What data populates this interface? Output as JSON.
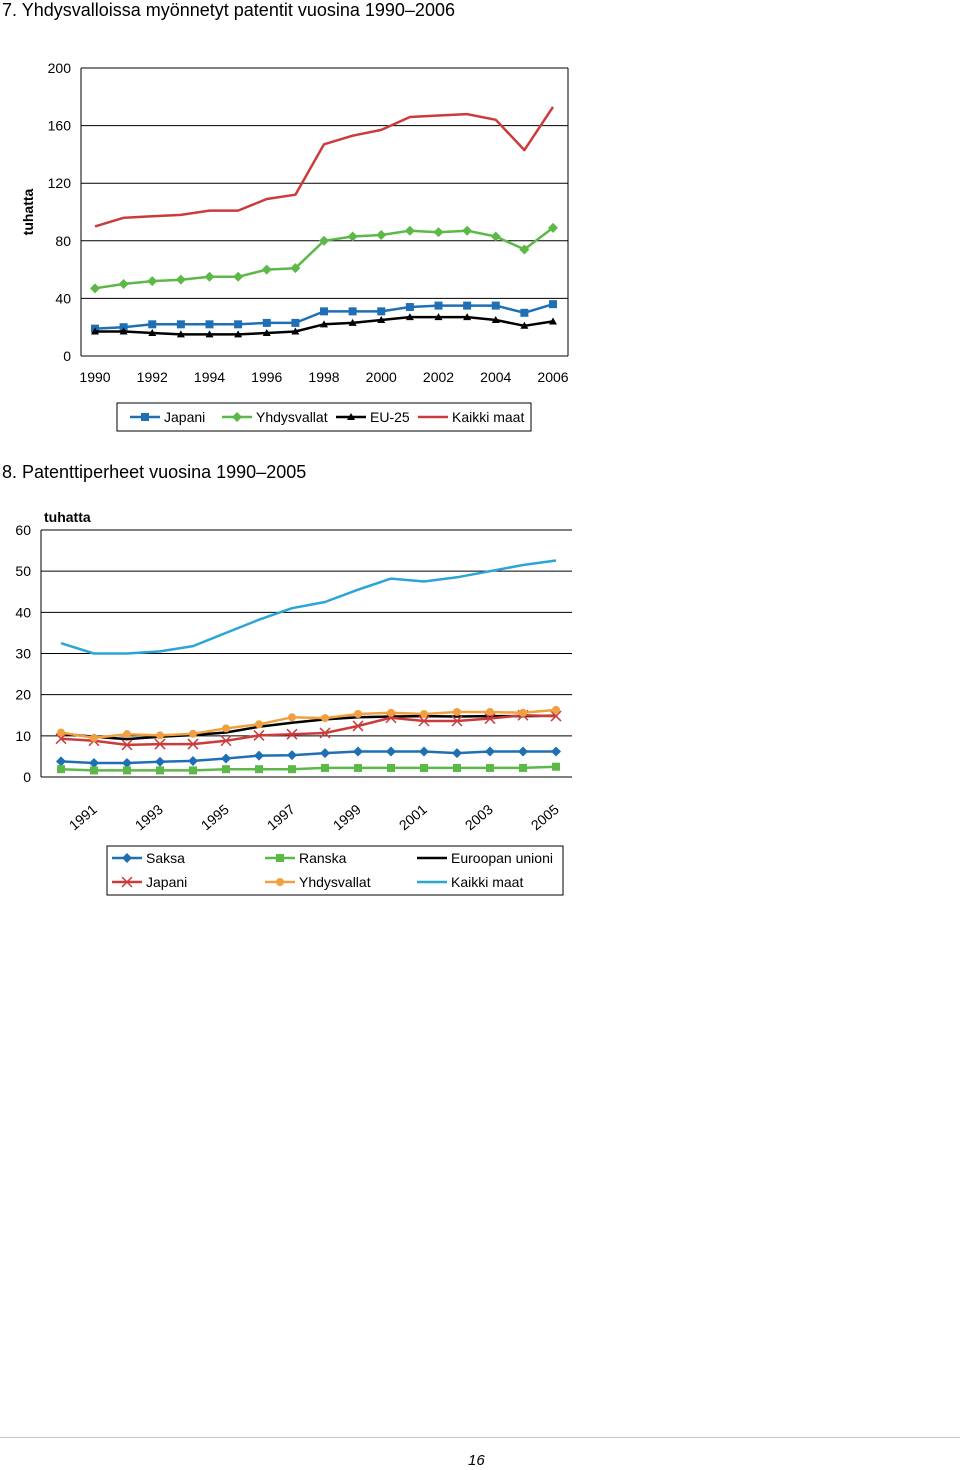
{
  "page": {
    "number": "16"
  },
  "chart_data": [
    {
      "id": "chart1",
      "type": "line",
      "title": "7. Yhdysvalloissa myönnetyt patentit vuosina 1990–2006",
      "ylabel": "tuhatta",
      "xlabel": "",
      "ylim": [
        0,
        200
      ],
      "yticks": [
        0,
        40,
        80,
        120,
        160,
        200
      ],
      "x": [
        1990,
        1991,
        1992,
        1993,
        1994,
        1995,
        1996,
        1997,
        1998,
        1999,
        2000,
        2001,
        2002,
        2003,
        2004,
        2005,
        2006
      ],
      "xticks": [
        "1990",
        "1992",
        "1994",
        "1996",
        "1998",
        "2000",
        "2002",
        "2004",
        "2006"
      ],
      "xtick_values": [
        1990,
        1992,
        1994,
        1996,
        1998,
        2000,
        2002,
        2004,
        2006
      ],
      "grid": "horizontal",
      "legend": "bottom",
      "series": [
        {
          "name": "Japani",
          "color": "#1f6fb4",
          "marker": "square",
          "values": [
            19,
            20,
            22,
            22,
            22,
            22,
            23,
            23,
            31,
            31,
            31,
            34,
            35,
            35,
            35,
            30,
            36
          ]
        },
        {
          "name": "Yhdysvallat",
          "color": "#5cb847",
          "marker": "diamond",
          "values": [
            47,
            50,
            52,
            53,
            55,
            55,
            60,
            61,
            80,
            83,
            84,
            87,
            86,
            87,
            83,
            74,
            89
          ]
        },
        {
          "name": "EU-25",
          "color": "#000000",
          "marker": "triangle",
          "values": [
            17,
            17,
            16,
            15,
            15,
            15,
            16,
            17,
            22,
            23,
            25,
            27,
            27,
            27,
            25,
            21,
            24
          ]
        },
        {
          "name": "Kaikki maat",
          "color": "#cc3b3b",
          "marker": "none",
          "values": [
            90,
            96,
            97,
            98,
            101,
            101,
            109,
            112,
            147,
            153,
            157,
            166,
            167,
            168,
            164,
            143,
            173
          ]
        }
      ]
    },
    {
      "id": "chart2",
      "type": "line",
      "title": "8. Patenttiperheet vuosina 1990–2005",
      "ylabel": "tuhatta",
      "xlabel": "",
      "ylim": [
        0,
        60
      ],
      "yticks": [
        0,
        10,
        20,
        30,
        40,
        50,
        60
      ],
      "x": [
        1990,
        1991,
        1992,
        1993,
        1994,
        1995,
        1996,
        1997,
        1998,
        1999,
        2000,
        2001,
        2002,
        2003,
        2004,
        2005
      ],
      "xticks": [
        "1991",
        "1993",
        "1995",
        "1997",
        "1999",
        "2001",
        "2003",
        "2005"
      ],
      "xtick_values": [
        1991,
        1993,
        1995,
        1997,
        1999,
        2001,
        2003,
        2005
      ],
      "grid": "horizontal",
      "legend": "bottom",
      "series": [
        {
          "name": "Saksa",
          "color": "#1f6fb4",
          "marker": "diamond",
          "values": [
            3.8,
            3.4,
            3.4,
            3.7,
            3.9,
            4.5,
            5.2,
            5.3,
            5.8,
            6.2,
            6.2,
            6.2,
            5.8,
            6.2,
            6.2,
            6.2
          ]
        },
        {
          "name": "Ranska",
          "color": "#5cb847",
          "marker": "square",
          "values": [
            1.9,
            1.6,
            1.6,
            1.6,
            1.6,
            1.9,
            1.9,
            1.9,
            2.2,
            2.2,
            2.2,
            2.2,
            2.2,
            2.2,
            2.2,
            2.5
          ]
        },
        {
          "name": "Euroopan unioni",
          "color": "#000000",
          "marker": "none",
          "values": [
            10.5,
            9.8,
            9.2,
            9.8,
            10.2,
            10.8,
            12.2,
            13.2,
            14,
            14.5,
            14.7,
            14.8,
            14.7,
            14.8,
            14.8,
            14.9
          ]
        },
        {
          "name": "Japani",
          "color": "#cc3b3b",
          "marker": "x",
          "values": [
            9.3,
            8.8,
            7.8,
            8,
            8,
            8.8,
            10.1,
            10.4,
            10.7,
            12.4,
            14.4,
            13.6,
            13.6,
            14.2,
            15,
            14.8
          ]
        },
        {
          "name": "Yhdysvallat",
          "color": "#f0a040",
          "marker": "circle",
          "values": [
            10.8,
            9.5,
            10.4,
            10.1,
            10.5,
            11.8,
            12.8,
            14.5,
            14.3,
            15.3,
            15.6,
            15.3,
            15.8,
            15.8,
            15.6,
            16.3
          ]
        },
        {
          "name": "Kaikki maat",
          "color": "#2aa5d6",
          "marker": "none",
          "values": [
            32.5,
            30,
            30,
            30.5,
            31.8,
            35,
            38.2,
            41,
            42.5,
            45.5,
            48.2,
            47.5,
            48.5,
            50,
            51.5,
            52.6
          ]
        }
      ]
    }
  ]
}
